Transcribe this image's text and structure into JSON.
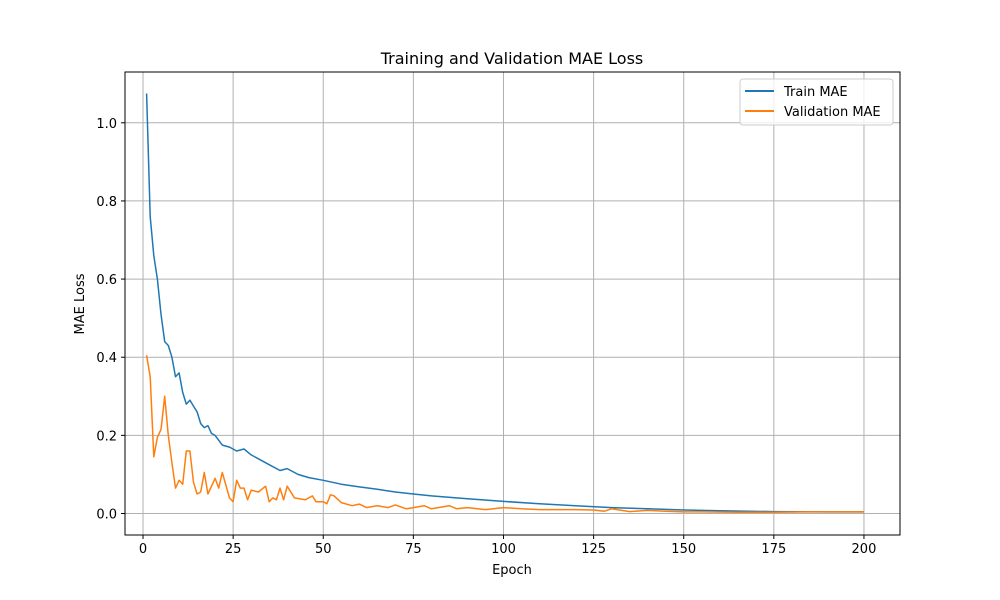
{
  "chart_data": {
    "type": "line",
    "title": "Training and Validation MAE Loss",
    "xlabel": "Epoch",
    "ylabel": "MAE Loss",
    "xlim": [
      -5,
      210
    ],
    "ylim": [
      -0.055,
      1.13
    ],
    "xticks": [
      0,
      25,
      50,
      75,
      100,
      125,
      150,
      175,
      200
    ],
    "yticks": [
      0.0,
      0.2,
      0.4,
      0.6,
      0.8,
      1.0
    ],
    "ytick_labels": [
      "0.0",
      "0.2",
      "0.4",
      "0.6",
      "0.8",
      "1.0"
    ],
    "grid": true,
    "legend_position": "top-right",
    "series": [
      {
        "name": "Train MAE",
        "color": "#1f77b4",
        "points": [
          [
            1,
            1.075
          ],
          [
            2,
            0.76
          ],
          [
            3,
            0.66
          ],
          [
            4,
            0.6
          ],
          [
            5,
            0.51
          ],
          [
            6,
            0.44
          ],
          [
            7,
            0.43
          ],
          [
            8,
            0.4
          ],
          [
            9,
            0.35
          ],
          [
            10,
            0.36
          ],
          [
            11,
            0.31
          ],
          [
            12,
            0.28
          ],
          [
            13,
            0.29
          ],
          [
            14,
            0.275
          ],
          [
            15,
            0.26
          ],
          [
            16,
            0.23
          ],
          [
            17,
            0.22
          ],
          [
            18,
            0.225
          ],
          [
            19,
            0.205
          ],
          [
            20,
            0.2
          ],
          [
            22,
            0.175
          ],
          [
            24,
            0.17
          ],
          [
            26,
            0.16
          ],
          [
            28,
            0.165
          ],
          [
            30,
            0.15
          ],
          [
            32,
            0.14
          ],
          [
            35,
            0.125
          ],
          [
            38,
            0.11
          ],
          [
            40,
            0.115
          ],
          [
            43,
            0.1
          ],
          [
            46,
            0.092
          ],
          [
            50,
            0.085
          ],
          [
            55,
            0.075
          ],
          [
            60,
            0.068
          ],
          [
            65,
            0.062
          ],
          [
            70,
            0.055
          ],
          [
            75,
            0.05
          ],
          [
            80,
            0.045
          ],
          [
            90,
            0.038
          ],
          [
            100,
            0.031
          ],
          [
            110,
            0.025
          ],
          [
            120,
            0.02
          ],
          [
            130,
            0.015
          ],
          [
            140,
            0.012
          ],
          [
            150,
            0.009
          ],
          [
            160,
            0.007
          ],
          [
            175,
            0.005
          ],
          [
            190,
            0.004
          ],
          [
            200,
            0.004
          ]
        ]
      },
      {
        "name": "Validation MAE",
        "color": "#ff7f0e",
        "points": [
          [
            1,
            0.405
          ],
          [
            2,
            0.35
          ],
          [
            3,
            0.145
          ],
          [
            4,
            0.195
          ],
          [
            5,
            0.215
          ],
          [
            6,
            0.3
          ],
          [
            7,
            0.2
          ],
          [
            8,
            0.13
          ],
          [
            9,
            0.065
          ],
          [
            10,
            0.085
          ],
          [
            11,
            0.075
          ],
          [
            12,
            0.16
          ],
          [
            13,
            0.16
          ],
          [
            14,
            0.08
          ],
          [
            15,
            0.05
          ],
          [
            16,
            0.055
          ],
          [
            17,
            0.105
          ],
          [
            18,
            0.05
          ],
          [
            20,
            0.09
          ],
          [
            21,
            0.065
          ],
          [
            22,
            0.105
          ],
          [
            24,
            0.04
          ],
          [
            25,
            0.03
          ],
          [
            26,
            0.085
          ],
          [
            27,
            0.065
          ],
          [
            28,
            0.065
          ],
          [
            29,
            0.035
          ],
          [
            30,
            0.06
          ],
          [
            32,
            0.055
          ],
          [
            34,
            0.07
          ],
          [
            35,
            0.03
          ],
          [
            36,
            0.04
          ],
          [
            37,
            0.035
          ],
          [
            38,
            0.065
          ],
          [
            39,
            0.035
          ],
          [
            40,
            0.07
          ],
          [
            42,
            0.04
          ],
          [
            45,
            0.035
          ],
          [
            47,
            0.045
          ],
          [
            48,
            0.03
          ],
          [
            50,
            0.03
          ],
          [
            51,
            0.025
          ],
          [
            52,
            0.048
          ],
          [
            53,
            0.045
          ],
          [
            55,
            0.028
          ],
          [
            58,
            0.02
          ],
          [
            60,
            0.024
          ],
          [
            62,
            0.015
          ],
          [
            65,
            0.02
          ],
          [
            68,
            0.015
          ],
          [
            70,
            0.022
          ],
          [
            73,
            0.012
          ],
          [
            75,
            0.015
          ],
          [
            78,
            0.02
          ],
          [
            80,
            0.012
          ],
          [
            85,
            0.02
          ],
          [
            87,
            0.012
          ],
          [
            90,
            0.015
          ],
          [
            95,
            0.01
          ],
          [
            100,
            0.015
          ],
          [
            105,
            0.012
          ],
          [
            110,
            0.01
          ],
          [
            115,
            0.01
          ],
          [
            120,
            0.01
          ],
          [
            125,
            0.009
          ],
          [
            128,
            0.006
          ],
          [
            130,
            0.012
          ],
          [
            135,
            0.005
          ],
          [
            140,
            0.008
          ],
          [
            145,
            0.006
          ],
          [
            150,
            0.004
          ],
          [
            155,
            0.004
          ],
          [
            165,
            0.003
          ],
          [
            175,
            0.003
          ],
          [
            185,
            0.004
          ],
          [
            195,
            0.004
          ],
          [
            200,
            0.004
          ]
        ]
      }
    ]
  }
}
